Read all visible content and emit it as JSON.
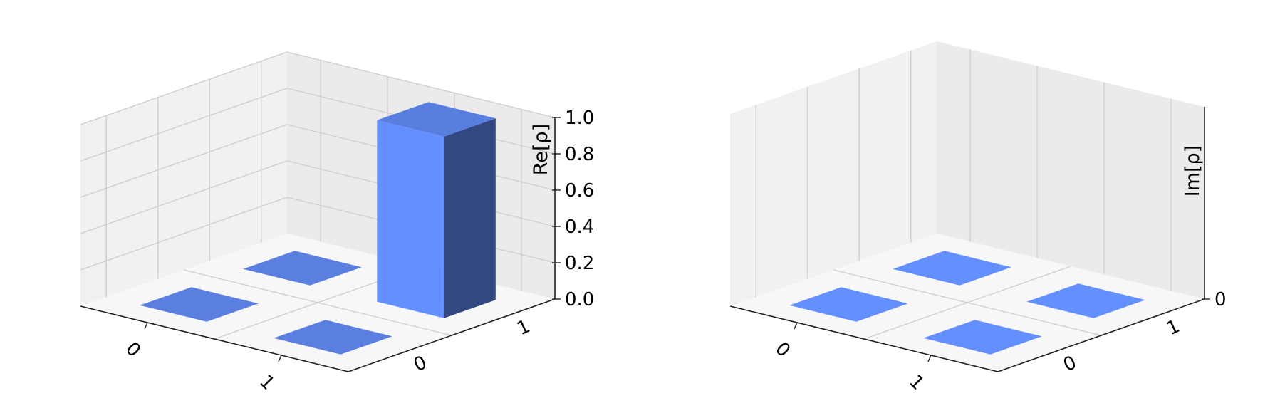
{
  "chart_data": [
    {
      "type": "bar3d",
      "zlabel": "Re[ρ]",
      "x_ticks": [
        "0",
        "1"
      ],
      "y_ticks": [
        "0",
        "1"
      ],
      "z_ticks": [
        "0.0",
        "0.2",
        "0.4",
        "0.6",
        "0.8",
        "1.0"
      ],
      "zlim": [
        0,
        1
      ],
      "grid": true,
      "bars": [
        {
          "x": "0",
          "y": "0",
          "value": 0
        },
        {
          "x": "1",
          "y": "0",
          "value": 0
        },
        {
          "x": "0",
          "y": "1",
          "value": 0
        },
        {
          "x": "1",
          "y": "1",
          "value": 1.0
        }
      ],
      "color": "#648fff"
    },
    {
      "type": "bar3d",
      "zlabel": "Im[ρ]",
      "x_ticks": [
        "0",
        "1"
      ],
      "y_ticks": [
        "0",
        "1"
      ],
      "z_ticks": [
        "0"
      ],
      "zlim": [
        0,
        0
      ],
      "grid": true,
      "bars": [
        {
          "x": "0",
          "y": "0",
          "value": 0
        },
        {
          "x": "1",
          "y": "0",
          "value": 0
        },
        {
          "x": "0",
          "y": "1",
          "value": 0
        },
        {
          "x": "1",
          "y": "1",
          "value": 0
        }
      ],
      "color": "#648fff"
    }
  ]
}
